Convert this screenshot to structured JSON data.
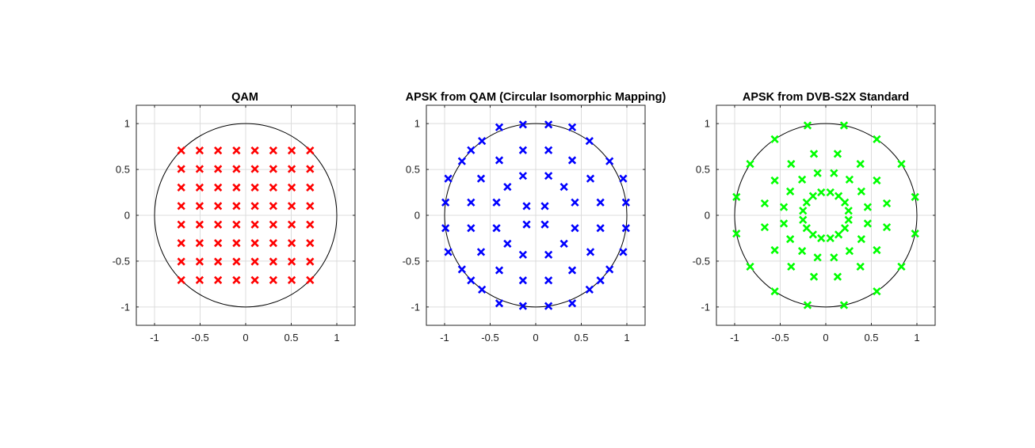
{
  "chart_data": [
    {
      "type": "scatter",
      "title": "QAM",
      "xlabel": "",
      "ylabel": "",
      "xlim": [
        -1.2,
        1.2
      ],
      "ylim": [
        -1.2,
        1.2
      ],
      "xticks": [
        "-1",
        "-0.5",
        "0",
        "0.5",
        "1"
      ],
      "yticks": [
        "1",
        "0.5",
        "0",
        "-0.5",
        "-1"
      ],
      "grid": true,
      "reference": "unit circle",
      "marker": "x",
      "color": "#ff0000",
      "points": [
        [
          -0.707,
          0.707
        ],
        [
          -0.505,
          0.707
        ],
        [
          -0.303,
          0.707
        ],
        [
          -0.101,
          0.707
        ],
        [
          0.101,
          0.707
        ],
        [
          0.303,
          0.707
        ],
        [
          0.505,
          0.707
        ],
        [
          0.707,
          0.707
        ],
        [
          -0.707,
          0.505
        ],
        [
          -0.505,
          0.505
        ],
        [
          -0.303,
          0.505
        ],
        [
          -0.101,
          0.505
        ],
        [
          0.101,
          0.505
        ],
        [
          0.303,
          0.505
        ],
        [
          0.505,
          0.505
        ],
        [
          0.707,
          0.505
        ],
        [
          -0.707,
          0.303
        ],
        [
          -0.505,
          0.303
        ],
        [
          -0.303,
          0.303
        ],
        [
          -0.101,
          0.303
        ],
        [
          0.101,
          0.303
        ],
        [
          0.303,
          0.303
        ],
        [
          0.505,
          0.303
        ],
        [
          0.707,
          0.303
        ],
        [
          -0.707,
          0.101
        ],
        [
          -0.505,
          0.101
        ],
        [
          -0.303,
          0.101
        ],
        [
          -0.101,
          0.101
        ],
        [
          0.101,
          0.101
        ],
        [
          0.303,
          0.101
        ],
        [
          0.505,
          0.101
        ],
        [
          0.707,
          0.101
        ],
        [
          -0.707,
          -0.101
        ],
        [
          -0.505,
          -0.101
        ],
        [
          -0.303,
          -0.101
        ],
        [
          -0.101,
          -0.101
        ],
        [
          0.101,
          -0.101
        ],
        [
          0.303,
          -0.101
        ],
        [
          0.505,
          -0.101
        ],
        [
          0.707,
          -0.101
        ],
        [
          -0.707,
          -0.303
        ],
        [
          -0.505,
          -0.303
        ],
        [
          -0.303,
          -0.303
        ],
        [
          -0.101,
          -0.303
        ],
        [
          0.101,
          -0.303
        ],
        [
          0.303,
          -0.303
        ],
        [
          0.505,
          -0.303
        ],
        [
          0.707,
          -0.303
        ],
        [
          -0.707,
          -0.505
        ],
        [
          -0.505,
          -0.505
        ],
        [
          -0.303,
          -0.505
        ],
        [
          -0.101,
          -0.505
        ],
        [
          0.101,
          -0.505
        ],
        [
          0.303,
          -0.505
        ],
        [
          0.505,
          -0.505
        ],
        [
          0.707,
          -0.505
        ],
        [
          -0.707,
          -0.707
        ],
        [
          -0.505,
          -0.707
        ],
        [
          -0.303,
          -0.707
        ],
        [
          -0.101,
          -0.707
        ],
        [
          0.101,
          -0.707
        ],
        [
          0.303,
          -0.707
        ],
        [
          0.505,
          -0.707
        ],
        [
          0.707,
          -0.707
        ]
      ]
    },
    {
      "type": "scatter",
      "title": "APSK from QAM (Circular Isomorphic Mapping)",
      "xlabel": "",
      "ylabel": "",
      "xlim": [
        -1.2,
        1.2
      ],
      "ylim": [
        -1.2,
        1.2
      ],
      "xticks": [
        "-1",
        "-0.5",
        "0",
        "0.5",
        "1"
      ],
      "yticks": [
        "1",
        "0.5",
        "0",
        "-0.5",
        "-1"
      ],
      "grid": true,
      "reference": "unit circle",
      "marker": "x",
      "color": "#0000ff",
      "points": [
        [
          0.99,
          0.14
        ],
        [
          0.96,
          0.4
        ],
        [
          0.81,
          0.59
        ],
        [
          0.59,
          0.81
        ],
        [
          0.4,
          0.96
        ],
        [
          0.14,
          0.99
        ],
        [
          -0.14,
          0.99
        ],
        [
          -0.4,
          0.96
        ],
        [
          -0.59,
          0.81
        ],
        [
          -0.71,
          0.71
        ],
        [
          -0.81,
          0.59
        ],
        [
          -0.96,
          0.4
        ],
        [
          -0.99,
          0.14
        ],
        [
          -0.99,
          -0.14
        ],
        [
          -0.96,
          -0.4
        ],
        [
          -0.81,
          -0.59
        ],
        [
          -0.71,
          -0.71
        ],
        [
          -0.59,
          -0.81
        ],
        [
          -0.4,
          -0.96
        ],
        [
          -0.14,
          -0.99
        ],
        [
          0.14,
          -0.99
        ],
        [
          0.4,
          -0.96
        ],
        [
          0.59,
          -0.81
        ],
        [
          0.71,
          -0.71
        ],
        [
          0.81,
          -0.59
        ],
        [
          0.96,
          -0.4
        ],
        [
          0.99,
          -0.14
        ],
        [
          0.71,
          0.14
        ],
        [
          0.6,
          0.4
        ],
        [
          0.4,
          0.6
        ],
        [
          0.14,
          0.71
        ],
        [
          -0.14,
          0.71
        ],
        [
          -0.4,
          0.6
        ],
        [
          -0.6,
          0.4
        ],
        [
          -0.71,
          0.14
        ],
        [
          -0.71,
          -0.14
        ],
        [
          -0.6,
          -0.4
        ],
        [
          -0.4,
          -0.6
        ],
        [
          -0.14,
          -0.71
        ],
        [
          0.14,
          -0.71
        ],
        [
          0.4,
          -0.6
        ],
        [
          0.6,
          -0.4
        ],
        [
          0.71,
          -0.14
        ],
        [
          0.43,
          0.14
        ],
        [
          0.31,
          0.31
        ],
        [
          0.14,
          0.43
        ],
        [
          -0.14,
          0.43
        ],
        [
          -0.31,
          0.31
        ],
        [
          -0.43,
          0.14
        ],
        [
          -0.43,
          -0.14
        ],
        [
          -0.31,
          -0.31
        ],
        [
          -0.14,
          -0.43
        ],
        [
          0.14,
          -0.43
        ],
        [
          0.31,
          -0.31
        ],
        [
          0.43,
          -0.14
        ],
        [
          0.1,
          0.1
        ],
        [
          -0.1,
          0.1
        ],
        [
          -0.1,
          -0.1
        ],
        [
          0.1,
          -0.1
        ]
      ]
    },
    {
      "type": "scatter",
      "title": "APSK from DVB-S2X Standard",
      "xlabel": "",
      "ylabel": "",
      "xlim": [
        -1.2,
        1.2
      ],
      "ylim": [
        -1.2,
        1.2
      ],
      "xticks": [
        "-1",
        "-0.5",
        "0",
        "0.5",
        "1"
      ],
      "yticks": [
        "1",
        "0.5",
        "0",
        "-0.5",
        "-1"
      ],
      "grid": true,
      "reference": "unit circle",
      "marker": "x",
      "color": "#00ff00",
      "points": [
        [
          0.98,
          0.2
        ],
        [
          0.83,
          0.56
        ],
        [
          0.56,
          0.83
        ],
        [
          0.2,
          0.98
        ],
        [
          -0.2,
          0.98
        ],
        [
          -0.56,
          0.83
        ],
        [
          -0.83,
          0.56
        ],
        [
          -0.98,
          0.2
        ],
        [
          -0.98,
          -0.2
        ],
        [
          -0.83,
          -0.56
        ],
        [
          -0.56,
          -0.83
        ],
        [
          -0.2,
          -0.98
        ],
        [
          0.2,
          -0.98
        ],
        [
          0.56,
          -0.83
        ],
        [
          0.83,
          -0.56
        ],
        [
          0.98,
          -0.2
        ],
        [
          0.67,
          0.13
        ],
        [
          0.56,
          0.38
        ],
        [
          0.38,
          0.56
        ],
        [
          0.13,
          0.67
        ],
        [
          -0.13,
          0.67
        ],
        [
          -0.38,
          0.56
        ],
        [
          -0.56,
          0.38
        ],
        [
          -0.67,
          0.13
        ],
        [
          -0.67,
          -0.13
        ],
        [
          -0.56,
          -0.38
        ],
        [
          -0.38,
          -0.56
        ],
        [
          -0.13,
          -0.67
        ],
        [
          0.13,
          -0.67
        ],
        [
          0.38,
          -0.56
        ],
        [
          0.56,
          -0.38
        ],
        [
          0.67,
          -0.13
        ],
        [
          0.46,
          0.09
        ],
        [
          0.39,
          0.26
        ],
        [
          0.26,
          0.39
        ],
        [
          0.09,
          0.46
        ],
        [
          -0.09,
          0.46
        ],
        [
          -0.26,
          0.39
        ],
        [
          -0.39,
          0.26
        ],
        [
          -0.46,
          0.09
        ],
        [
          -0.46,
          -0.09
        ],
        [
          -0.39,
          -0.26
        ],
        [
          -0.26,
          -0.39
        ],
        [
          -0.09,
          -0.46
        ],
        [
          0.09,
          -0.46
        ],
        [
          0.26,
          -0.39
        ],
        [
          0.39,
          -0.26
        ],
        [
          0.46,
          -0.09
        ],
        [
          0.25,
          0.05
        ],
        [
          0.21,
          0.14
        ],
        [
          0.14,
          0.21
        ],
        [
          0.05,
          0.25
        ],
        [
          -0.05,
          0.25
        ],
        [
          -0.14,
          0.21
        ],
        [
          -0.21,
          0.14
        ],
        [
          -0.25,
          0.05
        ],
        [
          -0.25,
          -0.05
        ],
        [
          -0.21,
          -0.14
        ],
        [
          -0.14,
          -0.21
        ],
        [
          -0.05,
          -0.25
        ],
        [
          0.05,
          -0.25
        ],
        [
          0.14,
          -0.21
        ],
        [
          0.21,
          -0.14
        ],
        [
          0.25,
          -0.05
        ]
      ]
    }
  ]
}
